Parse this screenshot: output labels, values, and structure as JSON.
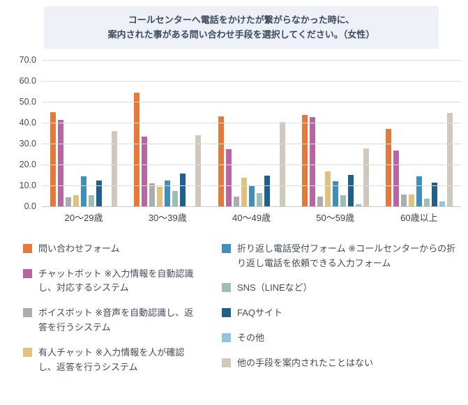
{
  "title": {
    "line1": "コールセンターへ電話をかけたが繋がらなかった時に、",
    "line2": "案内された事がある問い合わせ手段を選択してください。（女性）"
  },
  "chart_data": {
    "type": "bar",
    "title": "コールセンターへ電話をかけたが繋がらなかった時に、案内された事がある問い合わせ手段を選択してください。（女性）",
    "categories": [
      "20〜29歳",
      "30〜39歳",
      "40〜49歳",
      "50〜59歳",
      "60歳以上"
    ],
    "series": [
      {
        "name": "問い合わせフォーム",
        "color": "#e5793a",
        "values": [
          45.1,
          54.2,
          42.8,
          43.7,
          37.0
        ]
      },
      {
        "name": "チャットボット ※入力情報を自動認識し、対応するシステム",
        "color": "#b765a3",
        "values": [
          41.2,
          33.3,
          27.4,
          42.5,
          26.7
        ]
      },
      {
        "name": "ボイスボット ※音声を自動認識し、返答を行うシステム",
        "color": "#acacac",
        "values": [
          4.4,
          11.1,
          4.5,
          4.5,
          5.6
        ]
      },
      {
        "name": "有人チャット ※入力情報を人が確認し、返答を行うシステム",
        "color": "#dfc180",
        "values": [
          5.3,
          9.2,
          13.7,
          16.5,
          5.6
        ]
      },
      {
        "name": "折り返し電話受付フォーム ※コールセンターからの折り返し電話を依頼できる入力フォーム",
        "color": "#3e8fbb",
        "values": [
          14.2,
          12.4,
          9.9,
          12.0,
          14.3
        ]
      },
      {
        "name": "SNS（LINEなど）",
        "color": "#9dbfb1",
        "values": [
          5.4,
          7.2,
          6.4,
          5.3,
          3.6
        ]
      },
      {
        "name": "FAQサイト",
        "color": "#1f5f8d",
        "values": [
          12.2,
          15.7,
          14.6,
          14.9,
          11.2
        ]
      },
      {
        "name": "その他",
        "color": "#93c3de",
        "values": [
          0.0,
          0.0,
          0.0,
          1.0,
          2.2
        ]
      },
      {
        "name": "他の手段を案内されたことはない",
        "color": "#d0c9bb",
        "values": [
          35.9,
          33.9,
          40.2,
          27.7,
          44.5
        ]
      }
    ],
    "xlabel": "",
    "ylabel": "",
    "ylim": [
      0,
      70
    ],
    "ytick_step": 10,
    "ytick_decimals": 1,
    "grid": "horizontal",
    "legend_position": "bottom",
    "legend_columns": {
      "left_count": 4,
      "right_count": 5
    }
  }
}
